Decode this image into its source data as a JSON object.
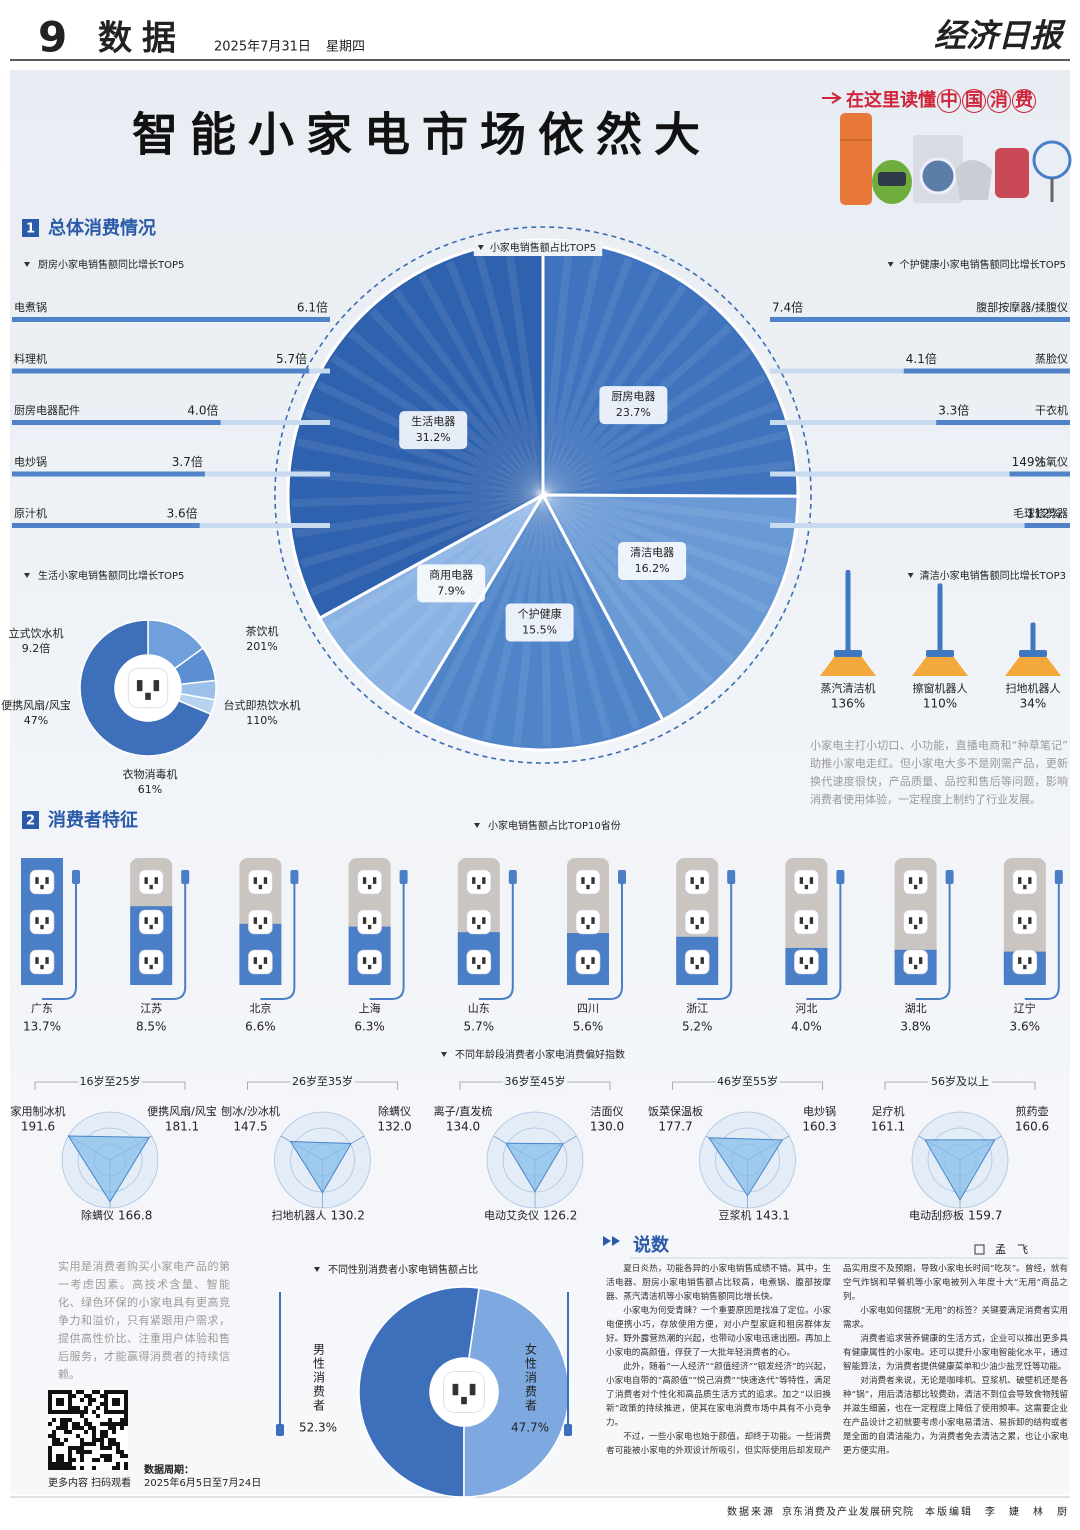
{
  "header": {
    "page_number": "9",
    "section": "数据",
    "date": "2025年7月31日",
    "weekday": "星期四",
    "masthead": "经济日报"
  },
  "title": "智能小家电市场依然大",
  "banner": {
    "prefix": "在这里读懂",
    "highlight": "中国消费"
  },
  "section_1": {
    "number": "1",
    "title": "总体消费情况"
  },
  "section_2": {
    "number": "2",
    "title": "消费者特征"
  },
  "chart_data": [
    {
      "type": "pie",
      "title": "小家电销售额占比TOP5",
      "categories": [
        "厨房电器",
        "清洁电器",
        "个护健康",
        "商用电器",
        "生活电器"
      ],
      "values": [
        23.7,
        16.2,
        15.5,
        7.9,
        31.2
      ],
      "value_labels": [
        "23.7%",
        "16.2%",
        "15.5%",
        "7.9%",
        "31.2%"
      ],
      "colors": [
        "#3f73bd",
        "#6a9ad6",
        "#4f84c9",
        "#8bb4e4",
        "#2f62ae"
      ]
    },
    {
      "type": "bar",
      "title": "厨房小家电销售额同比增长TOP5",
      "categories": [
        "电煮锅",
        "料理机",
        "厨房电器配件",
        "电炒锅",
        "原汁机"
      ],
      "values": [
        6.1,
        5.7,
        4.0,
        3.7,
        3.6
      ],
      "value_labels": [
        "6.1倍",
        "5.7倍",
        "4.0倍",
        "3.7倍",
        "3.6倍"
      ],
      "color": "#4f82c6"
    },
    {
      "type": "bar",
      "title": "个护健康小家电销售额同比增长TOP5",
      "categories": [
        "腹部按摩器/揉腹仪",
        "蒸脸仪",
        "干衣机",
        "注氧仪",
        "毛球修剪器"
      ],
      "values": [
        7.4,
        4.1,
        3.3,
        1.49,
        1.12
      ],
      "value_labels": [
        "7.4倍",
        "4.1倍",
        "3.3倍",
        "149%",
        "112%"
      ],
      "color": "#4f82c6"
    },
    {
      "type": "donut",
      "title": "生活小家电销售额同比增长TOP5",
      "categories": [
        "茶饮机",
        "台式即热饮水机",
        "衣物消毒机",
        "便携风扇/风宝",
        "立式饮水机"
      ],
      "values": [
        2.01,
        1.1,
        0.61,
        0.47,
        9.2
      ],
      "value_labels": [
        "201%",
        "110%",
        "61%",
        "47%",
        "9.2倍"
      ],
      "colors": [
        "#6f9fdc",
        "#5b8fd2",
        "#9cc0ea",
        "#b8d3f1",
        "#3d6fba"
      ]
    },
    {
      "type": "bar",
      "title": "清洁小家电销售额同比增长TOP3",
      "categories": [
        "蒸汽清洁机",
        "擦窗机器人",
        "扫地机器人"
      ],
      "values": [
        1.36,
        1.1,
        0.34
      ],
      "value_labels": [
        "136%",
        "110%",
        "34%"
      ],
      "color": "#3f78c0"
    },
    {
      "type": "bar",
      "title": "小家电销售额占比TOP10省份",
      "categories": [
        "广东",
        "江苏",
        "北京",
        "上海",
        "山东",
        "四川",
        "浙江",
        "河北",
        "湖北",
        "辽宁"
      ],
      "values": [
        13.7,
        8.5,
        6.6,
        6.3,
        5.7,
        5.6,
        5.2,
        4.0,
        3.8,
        3.6
      ],
      "value_labels": [
        "13.7%",
        "8.5%",
        "6.6%",
        "6.3%",
        "5.7%",
        "5.6%",
        "5.2%",
        "4.0%",
        "3.8%",
        "3.6%"
      ],
      "color": "#4a7fc8"
    },
    {
      "type": "radar",
      "title": "不同年龄段消费者小家电消费偏好指数",
      "color": "#86bde9",
      "groups": [
        {
          "name": "16岁至25岁",
          "categories": [
            "家用制冰机",
            "便携风扇/风宝",
            "除螨仪"
          ],
          "values": [
            191.6,
            181.1,
            166.8
          ],
          "value_labels": [
            "191.6",
            "181.1",
            "166.8"
          ]
        },
        {
          "name": "26岁至35岁",
          "categories": [
            "刨冰/沙冰机",
            "除螨仪",
            "扫地机器人"
          ],
          "values": [
            147.5,
            132.0,
            130.2
          ],
          "value_labels": [
            "147.5",
            "132.0",
            "130.2"
          ]
        },
        {
          "name": "36岁至45岁",
          "categories": [
            "离子/直发梳",
            "洁面仪",
            "电动艾灸仪"
          ],
          "values": [
            134.0,
            130.0,
            126.2
          ],
          "value_labels": [
            "134.0",
            "130.0",
            "126.2"
          ]
        },
        {
          "name": "46岁至55岁",
          "categories": [
            "饭菜保温板",
            "电炒锅",
            "豆浆机"
          ],
          "values": [
            177.7,
            160.3,
            143.1
          ],
          "value_labels": [
            "177.7",
            "160.3",
            "143.1"
          ]
        },
        {
          "name": "56岁及以上",
          "categories": [
            "足疗机",
            "煎药壶",
            "电动刮痧板"
          ],
          "values": [
            161.1,
            160.6,
            159.7
          ],
          "value_labels": [
            "161.1",
            "160.6",
            "159.7"
          ]
        }
      ]
    },
    {
      "type": "donut",
      "title": "不同性别消费者小家电销售额占比",
      "categories": [
        "男性消费者",
        "女性消费者"
      ],
      "values": [
        52.3,
        47.7
      ],
      "value_labels": [
        "52.3%",
        "47.7%"
      ],
      "colors": [
        "#3d6fba",
        "#7ea9e0"
      ]
    }
  ],
  "paragraph_1": "小家电主打小切口、小功能，直播电商和“种草笔记”助推小家电走红。但小家电大多不是刚需产品，更新换代速度很快，产品质量、品控和售后等问题，影响消费者使用体验，一定程度上制约了行业发展。",
  "paragraph_2": "实用是消费者购买小家电产品的第一考虑因素。高技术含量、智能化、绿色环保的小家电具有更高竞争力和溢价，只有紧跟用户需求，提供高性价比、注重用户体验和售后服务，才能赢得消费者的持续信赖。",
  "qr_caption": "更多内容 扫码观看",
  "data_period": {
    "label": "数据周期：",
    "value": "2025年6月5日至7月24日"
  },
  "column": {
    "title": "说数",
    "author": "孟　飞",
    "paragraphs": [
      "夏日炎热，功能各异的小家电销售成绩不错。其中，生活电器、厨房小家电销售额占比较高，电煮锅、腹部按摩器、蒸汽清洁机等小家电销售额同比增长快。",
      "小家电为何受青睐？一个重要原因是找准了定位。小家电便携小巧，存放使用方便，对小户型家庭和租房群体友好。野外露营热潮的兴起，也带动小家电迅速出圈。再加上小家电的高颜值，俘获了一大批年轻消费者的心。",
      "此外，随着“一人经济”“颜值经济”“银发经济”的兴起，小家电自带的“高颜值”“悦己消费”“快速迭代”等特性，满足了消费者对个性化和高品质生活方式的追求。加之“以旧换新”政策的持续推进，使其在家电消费市场中具有不小竞争力。",
      "不过，一些小家电也始于颜值，却终于功能。一些消费者可能被小家电的外观设计所吸引，但实际使用后却发现产品实用度不及预期，导致小家电长时间“吃灰”。曾经，就有空气炸锅和早餐机等小家电被列入年度十大“无用”商品之列。",
      "小家电如何摆脱“无用”的标签？关键要满足消费者实用需求。",
      "消费者追求营养健康的生活方式，企业可以推出更多具有健康属性的小家电。还可以提升小家电智能化水平，通过智能算法，为消费者提供健康菜单和少油少盐烹饪等功能。",
      "对消费者来说，无论是咖啡机、豆浆机、破壁机还是各种“锅”，用后清洁都比较费劲，清洁不到位会导致食物残留并滋生细菌，也在一定程度上降低了使用频率。这需要企业在产品设计之初就要考虑小家电易清洁、易拆卸的结构或者是全面的自清洁能力，为消费者免去清洁之累，也让小家电更方便实用。"
    ]
  },
  "footer": {
    "source_label": "数据来源",
    "source": "京东消费及产业发展研究院",
    "editor_label": "本版编辑",
    "editors": "李　婕　林　厨"
  }
}
